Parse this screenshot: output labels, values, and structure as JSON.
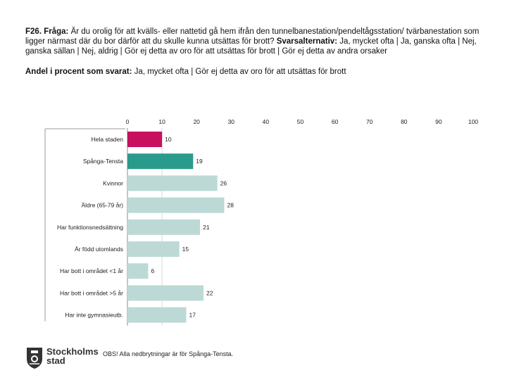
{
  "header": {
    "question_label": "F26. Fråga:",
    "question_text": "Är du orolig för att kvälls- eller nattetid gå hem ifrån den tunnelbanestation/pendeltågsstation/ tvärbanestation som ligger närmast där du bor därför att du skulle kunna utsättas för brott?",
    "alternatives_label": "Svarsalternativ:",
    "alternatives_text": "Ja, mycket ofta | Ja, ganska ofta | Nej, ganska sällan | Nej, aldrig | Gör ej detta av oro för att utsättas för brott | Gör ej detta av andra orsaker",
    "share_label": "Andel i procent som svarat:",
    "share_text": "Ja, mycket ofta | Gör ej detta av oro för att utsättas för brott"
  },
  "footer": {
    "logo_line1": "Stockholms",
    "logo_line2": "stad",
    "note": "OBS! Alla nedbrytningar är för Spånga-Tensta."
  },
  "colors": {
    "highlight": "#c8105e",
    "district": "#2a9a8c",
    "other": "#bcd9d6",
    "axis": "#888888"
  },
  "chart_data": {
    "type": "bar",
    "orientation": "horizontal",
    "xlim": [
      0,
      100
    ],
    "ticks": [
      0,
      10,
      20,
      30,
      40,
      50,
      60,
      70,
      80,
      90,
      100
    ],
    "grid": false,
    "categories": [
      "Hela staden",
      "Spånga-Tensta",
      "Kvinnor",
      "Äldre (65-79 år)",
      "Har funktionsnedsättning",
      "Är född utomlands",
      "Har bott i området <1 år",
      "Har bott i området >5 år",
      "Har inte gymnasieutb."
    ],
    "values": [
      10,
      19,
      26,
      28,
      21,
      15,
      6,
      22,
      17
    ],
    "color_keys": [
      "highlight",
      "district",
      "other",
      "other",
      "other",
      "other",
      "other",
      "other",
      "other"
    ]
  }
}
